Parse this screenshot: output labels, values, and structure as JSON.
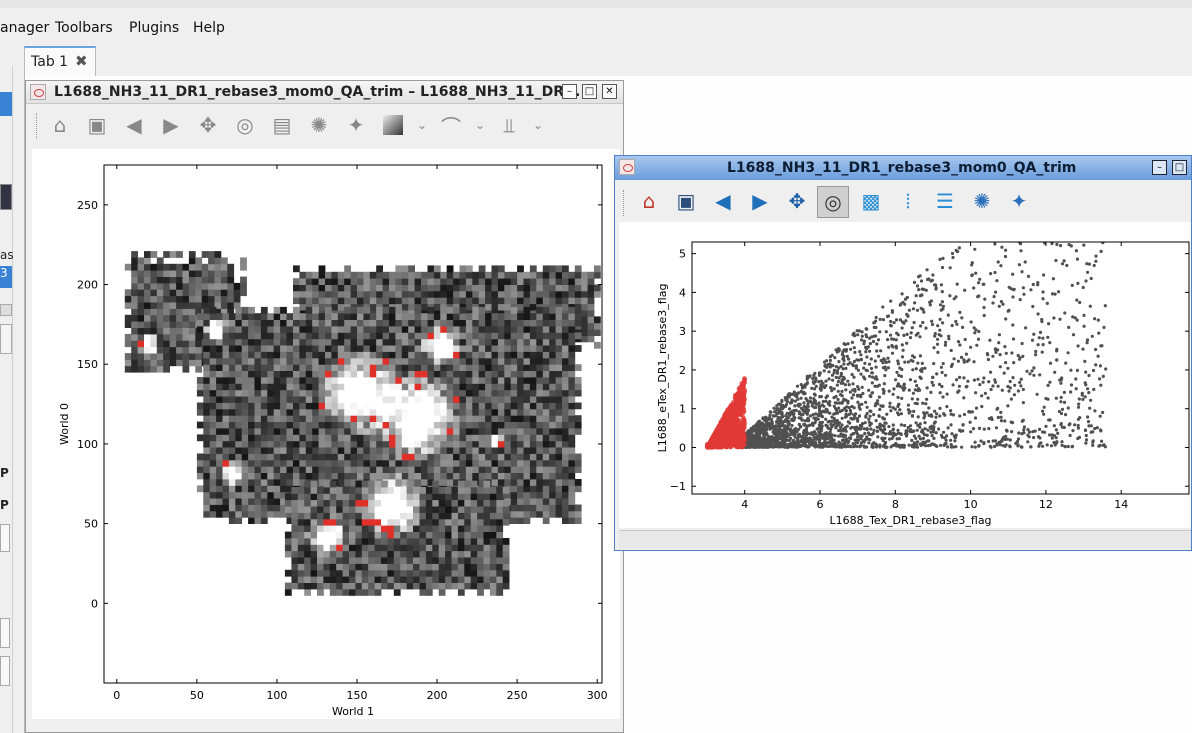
{
  "menu": {
    "items": [
      {
        "label": "anager",
        "key": "manager"
      },
      {
        "label": "Toolbars",
        "key": "toolbars"
      },
      {
        "label": "Plugins",
        "key": "plugins"
      },
      {
        "label": "Help",
        "key": "help"
      }
    ]
  },
  "tabs": [
    {
      "label": "Tab 1",
      "close_icon": "close-x-icon"
    }
  ],
  "left_panel": {
    "labels": [
      "as",
      "3",
      "P",
      "P"
    ]
  },
  "image_window": {
    "title": "L1688_NH3_11_DR1_rebase3_mom0_QA_trim – L1688_NH3_11_DR...",
    "buttons": {
      "minimize": "–",
      "maximize": "□",
      "close": "✕"
    },
    "toolbar_icons": [
      "home-icon",
      "save-icon",
      "back-icon",
      "forward-icon",
      "pan-icon",
      "select-icon",
      "crop-icon",
      "rgb-icon",
      "gamepad-icon",
      "colormap-icon",
      "contour-icon",
      "histogram-icon"
    ]
  },
  "scatter_window": {
    "title": "L1688_NH3_11_DR1_rebase3_mom0_QA_trim",
    "buttons": {
      "minimize": "–",
      "maximize": "□"
    },
    "toolbar_icons": [
      "home-icon",
      "save-icon",
      "back-icon",
      "forward-icon",
      "pan-icon",
      "select-icon",
      "box-select-icon",
      "xrange-icon",
      "yrange-icon",
      "circle-select-icon",
      "gamepad-icon"
    ]
  },
  "chart_data": [
    {
      "type": "heatmap",
      "title": "",
      "xlabel": "World 1",
      "ylabel": "World 0",
      "xlim": [
        -8,
        303
      ],
      "ylim": [
        -50,
        275
      ],
      "x_ticks": [
        "0",
        "50",
        "100",
        "150",
        "200",
        "250",
        "300"
      ],
      "x_tick_values": [
        0,
        50,
        100,
        150,
        200,
        250,
        300
      ],
      "y_ticks": [
        "0",
        "50",
        "100",
        "150",
        "200",
        "250"
      ],
      "y_tick_values": [
        0,
        50,
        100,
        150,
        200,
        250
      ],
      "colormap": "gray",
      "overlay_color": "#e0302a",
      "regions": [
        {
          "x": [
            5,
            78
          ],
          "y": [
            145,
            218
          ]
        },
        {
          "x": [
            110,
            300
          ],
          "y": [
            160,
            210
          ]
        },
        {
          "x": [
            50,
            290
          ],
          "y": [
            50,
            185
          ]
        },
        {
          "x": [
            105,
            245
          ],
          "y": [
            5,
            75
          ]
        }
      ]
    },
    {
      "type": "scatter",
      "title": "",
      "xlabel": "L1688_Tex_DR1_rebase3_flag",
      "ylabel": "L1688_eTex_DR1_rebase3_flag",
      "xlim": [
        2.6,
        15.8
      ],
      "ylim": [
        -1.2,
        5.3
      ],
      "x_ticks": [
        "4",
        "6",
        "8",
        "10",
        "12",
        "14"
      ],
      "x_tick_values": [
        4,
        6,
        8,
        10,
        12,
        14
      ],
      "y_ticks": [
        "−1",
        "0",
        "1",
        "2",
        "3",
        "4",
        "5"
      ],
      "y_tick_values": [
        -1,
        0,
        1,
        2,
        3,
        4,
        5
      ],
      "series": [
        {
          "name": "",
          "color": "#505050",
          "x_range": [
            3.8,
            13.6
          ],
          "y_range": [
            0,
            5.3
          ]
        },
        {
          "name": "",
          "color": "#e23a36",
          "x_range": [
            3.0,
            4.0
          ],
          "y_range": [
            0,
            1.8
          ]
        }
      ]
    }
  ]
}
